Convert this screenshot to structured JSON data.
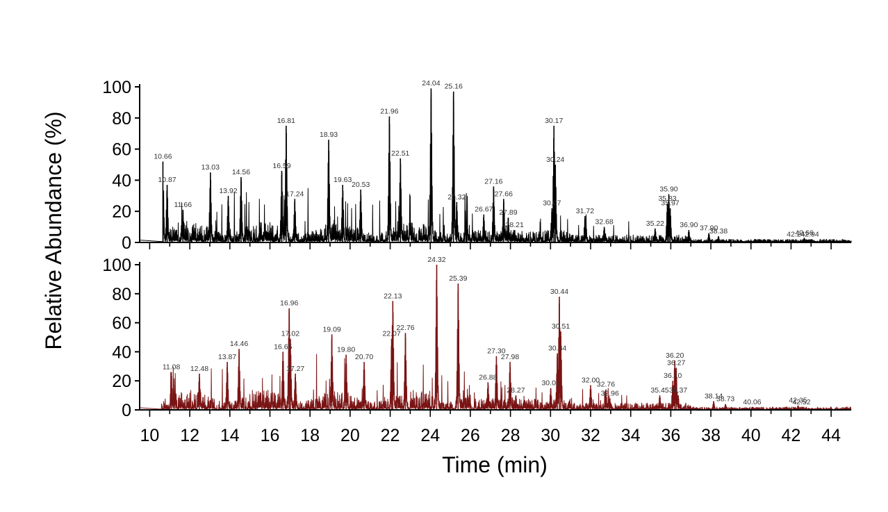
{
  "chart_data": [
    {
      "type": "line",
      "panel": "top",
      "series": [
        {
          "color": "#000000"
        }
      ],
      "xlim": [
        9.5,
        45
      ],
      "ylim": [
        0,
        100
      ],
      "yticks": [
        0,
        20,
        40,
        60,
        80,
        100
      ],
      "ylabel": "Relative Abundance (%)",
      "peaks": [
        {
          "x": 10.66,
          "y": 52,
          "label": "10.66"
        },
        {
          "x": 10.87,
          "y": 37,
          "label": "10.87"
        },
        {
          "x": 11.66,
          "y": 21,
          "label": "11.66"
        },
        {
          "x": 13.03,
          "y": 45,
          "label": "13.03"
        },
        {
          "x": 13.92,
          "y": 30,
          "label": "13.92"
        },
        {
          "x": 14.56,
          "y": 42,
          "label": "14.56"
        },
        {
          "x": 16.59,
          "y": 46,
          "label": "16.59"
        },
        {
          "x": 16.81,
          "y": 75,
          "label": "16.81"
        },
        {
          "x": 17.24,
          "y": 28,
          "label": "17.24"
        },
        {
          "x": 18.93,
          "y": 66,
          "label": "18.93"
        },
        {
          "x": 19.63,
          "y": 37,
          "label": "19.63"
        },
        {
          "x": 20.53,
          "y": 34,
          "label": "20.53"
        },
        {
          "x": 21.96,
          "y": 81,
          "label": "21.96"
        },
        {
          "x": 22.51,
          "y": 54,
          "label": "22.51"
        },
        {
          "x": 24.04,
          "y": 99,
          "label": "24.04"
        },
        {
          "x": 25.16,
          "y": 97,
          "label": "25.16"
        },
        {
          "x": 25.32,
          "y": 26,
          "label": "25.32"
        },
        {
          "x": 26.67,
          "y": 18,
          "label": "26.67"
        },
        {
          "x": 27.16,
          "y": 36,
          "label": "27.16"
        },
        {
          "x": 27.66,
          "y": 28,
          "label": "27.66"
        },
        {
          "x": 27.89,
          "y": 16,
          "label": "27.89"
        },
        {
          "x": 28.21,
          "y": 8,
          "label": "28.21"
        },
        {
          "x": 30.07,
          "y": 22,
          "label": "30.07"
        },
        {
          "x": 30.17,
          "y": 75,
          "label": "30.17"
        },
        {
          "x": 30.24,
          "y": 50,
          "label": "30.24"
        },
        {
          "x": 31.72,
          "y": 17,
          "label": "31.72"
        },
        {
          "x": 32.68,
          "y": 10,
          "label": "32.68"
        },
        {
          "x": 35.22,
          "y": 9,
          "label": "35.22"
        },
        {
          "x": 35.83,
          "y": 25,
          "label": "35.83"
        },
        {
          "x": 35.9,
          "y": 31,
          "label": "35.90"
        },
        {
          "x": 35.97,
          "y": 22,
          "label": "35.97"
        },
        {
          "x": 36.9,
          "y": 8,
          "label": "36.90"
        },
        {
          "x": 37.9,
          "y": 6,
          "label": "37.90"
        },
        {
          "x": 38.38,
          "y": 4,
          "label": "38.38"
        },
        {
          "x": 42.24,
          "y": 2,
          "label": "42.24"
        },
        {
          "x": 42.66,
          "y": 3,
          "label": "42.66"
        },
        {
          "x": 42.94,
          "y": 2,
          "label": "42.94"
        }
      ]
    },
    {
      "type": "line",
      "panel": "bottom",
      "series": [
        {
          "color": "#7a1414"
        }
      ],
      "xlim": [
        9.5,
        45
      ],
      "ylim": [
        0,
        100
      ],
      "yticks": [
        0,
        20,
        40,
        60,
        80,
        100
      ],
      "xticks": [
        10,
        12,
        14,
        16,
        18,
        20,
        22,
        24,
        26,
        28,
        30,
        32,
        34,
        36,
        38,
        40,
        42,
        44
      ],
      "xlabel": "Time (min)",
      "peaks": [
        {
          "x": 11.08,
          "y": 26,
          "label": "11.08"
        },
        {
          "x": 12.48,
          "y": 25,
          "label": "12.48"
        },
        {
          "x": 13.87,
          "y": 33,
          "label": "13.87"
        },
        {
          "x": 14.46,
          "y": 42,
          "label": "14.46"
        },
        {
          "x": 16.65,
          "y": 40,
          "label": "16.65"
        },
        {
          "x": 16.96,
          "y": 70,
          "label": "16.96"
        },
        {
          "x": 17.02,
          "y": 49,
          "label": "17.02"
        },
        {
          "x": 17.27,
          "y": 25,
          "label": "17.27"
        },
        {
          "x": 19.09,
          "y": 52,
          "label": "19.09"
        },
        {
          "x": 19.8,
          "y": 38,
          "label": "19.80"
        },
        {
          "x": 20.7,
          "y": 33,
          "label": "20.70"
        },
        {
          "x": 22.07,
          "y": 49,
          "label": "22.07"
        },
        {
          "x": 22.13,
          "y": 75,
          "label": "22.13"
        },
        {
          "x": 22.76,
          "y": 53,
          "label": "22.76"
        },
        {
          "x": 24.32,
          "y": 100,
          "label": "24.32"
        },
        {
          "x": 25.39,
          "y": 87,
          "label": "25.39"
        },
        {
          "x": 26.88,
          "y": 19,
          "label": "26.88"
        },
        {
          "x": 27.3,
          "y": 37,
          "label": "27.30"
        },
        {
          "x": 27.98,
          "y": 33,
          "label": "27.98"
        },
        {
          "x": 28.27,
          "y": 10,
          "label": "28.27"
        },
        {
          "x": 30.01,
          "y": 15,
          "label": "30.01"
        },
        {
          "x": 30.34,
          "y": 39,
          "label": "30.34"
        },
        {
          "x": 30.44,
          "y": 78,
          "label": "30.44"
        },
        {
          "x": 30.51,
          "y": 54,
          "label": "30.51"
        },
        {
          "x": 32.0,
          "y": 17,
          "label": "32.00"
        },
        {
          "x": 32.76,
          "y": 14,
          "label": "32.76"
        },
        {
          "x": 32.96,
          "y": 8,
          "label": "32.96"
        },
        {
          "x": 35.45,
          "y": 10,
          "label": "35.45"
        },
        {
          "x": 36.1,
          "y": 20,
          "label": "36.10"
        },
        {
          "x": 36.2,
          "y": 34,
          "label": "36.20"
        },
        {
          "x": 36.27,
          "y": 29,
          "label": "36.27"
        },
        {
          "x": 36.37,
          "y": 10,
          "label": "36.37"
        },
        {
          "x": 38.14,
          "y": 6,
          "label": "38.14"
        },
        {
          "x": 38.73,
          "y": 4,
          "label": "38.73"
        },
        {
          "x": 40.06,
          "y": 2,
          "label": "40.06"
        },
        {
          "x": 42.35,
          "y": 3,
          "label": "42.35"
        },
        {
          "x": 42.52,
          "y": 2,
          "label": "42.52"
        }
      ]
    }
  ]
}
